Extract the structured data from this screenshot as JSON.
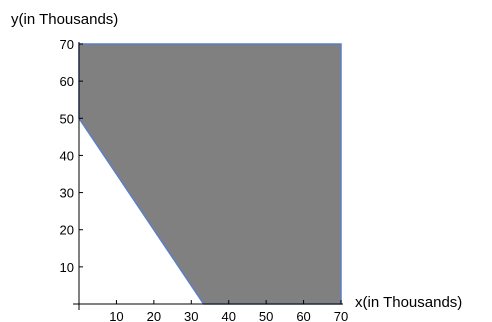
{
  "chart_data": {
    "type": "area",
    "title": "",
    "xlabel": "x(in Thousands)",
    "ylabel": "y(in Thousands)",
    "xlim": [
      0,
      70
    ],
    "ylim": [
      0,
      70
    ],
    "x_ticks": [
      10,
      20,
      30,
      40,
      50,
      60,
      70
    ],
    "y_ticks": [
      10,
      20,
      30,
      40,
      50,
      60,
      70
    ],
    "grid": false,
    "legend": "none",
    "region": {
      "vertices": [
        {
          "x": 0,
          "y": 50
        },
        {
          "x": 0,
          "y": 70
        },
        {
          "x": 70,
          "y": 70
        },
        {
          "x": 70,
          "y": 0
        },
        {
          "x": 33.3,
          "y": 0
        }
      ],
      "fill_color": "#808080",
      "edge_color": "#5b7fc8"
    },
    "axis_color": "#000000"
  }
}
